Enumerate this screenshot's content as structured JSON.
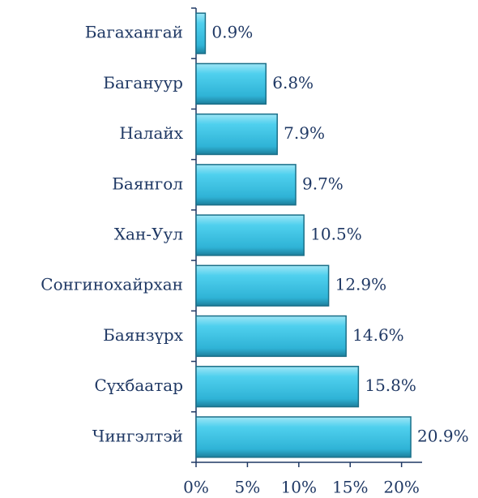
{
  "chart_data": {
    "type": "barh",
    "categories": [
      "Багахангай",
      "Багануур",
      "Налайх",
      "Баянгол",
      "Хан-Уул",
      "Сонгинохайрхан",
      "Баянзүрх",
      "Сүхбаатар",
      "Чингэлтэй"
    ],
    "values": [
      0.9,
      6.8,
      7.9,
      9.7,
      10.5,
      12.9,
      14.6,
      15.8,
      20.9
    ],
    "value_labels": [
      "0.9%",
      "6.8%",
      "7.9%",
      "9.7%",
      "10.5%",
      "12.9%",
      "14.6%",
      "15.8%",
      "20.9%"
    ],
    "color": "#3cc3e4",
    "xlim": [
      0,
      22
    ],
    "xticks": [
      {
        "value": 0,
        "label": "0%"
      },
      {
        "value": 5,
        "label": "5%"
      },
      {
        "value": 10,
        "label": "10%"
      },
      {
        "value": 15,
        "label": "15%"
      },
      {
        "value": 20,
        "label": "20%"
      }
    ]
  }
}
